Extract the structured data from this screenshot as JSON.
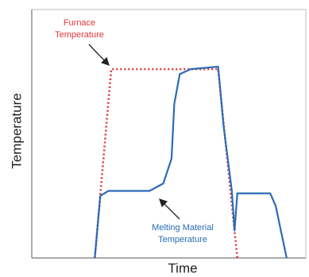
{
  "chart_data": {
    "type": "line",
    "xlabel": "Time",
    "ylabel": "Temperature",
    "xlim": [
      0,
      100
    ],
    "ylim": [
      0,
      100
    ],
    "series": [
      {
        "name": "Furnace Temperature",
        "color": "#e0353a",
        "style": "dotted",
        "x": [
          23,
          29,
          68,
          75
        ],
        "values": [
          0,
          76,
          76,
          0
        ]
      },
      {
        "name": "Melting Material Temperature",
        "color": "#2b6cb5",
        "style": "solid",
        "x": [
          23,
          25,
          28,
          43,
          48,
          51,
          52,
          54,
          58,
          68,
          70,
          73,
          74,
          75,
          87,
          89,
          93
        ],
        "values": [
          0,
          25,
          27,
          27,
          30,
          40,
          62,
          74,
          76,
          77,
          53,
          27,
          11,
          26,
          26,
          21,
          0
        ]
      }
    ],
    "annotations": [
      {
        "lines": [
          "Furnace",
          "Temperature"
        ]
      },
      {
        "lines": [
          "Melting Material",
          "Temperature"
        ]
      }
    ]
  }
}
